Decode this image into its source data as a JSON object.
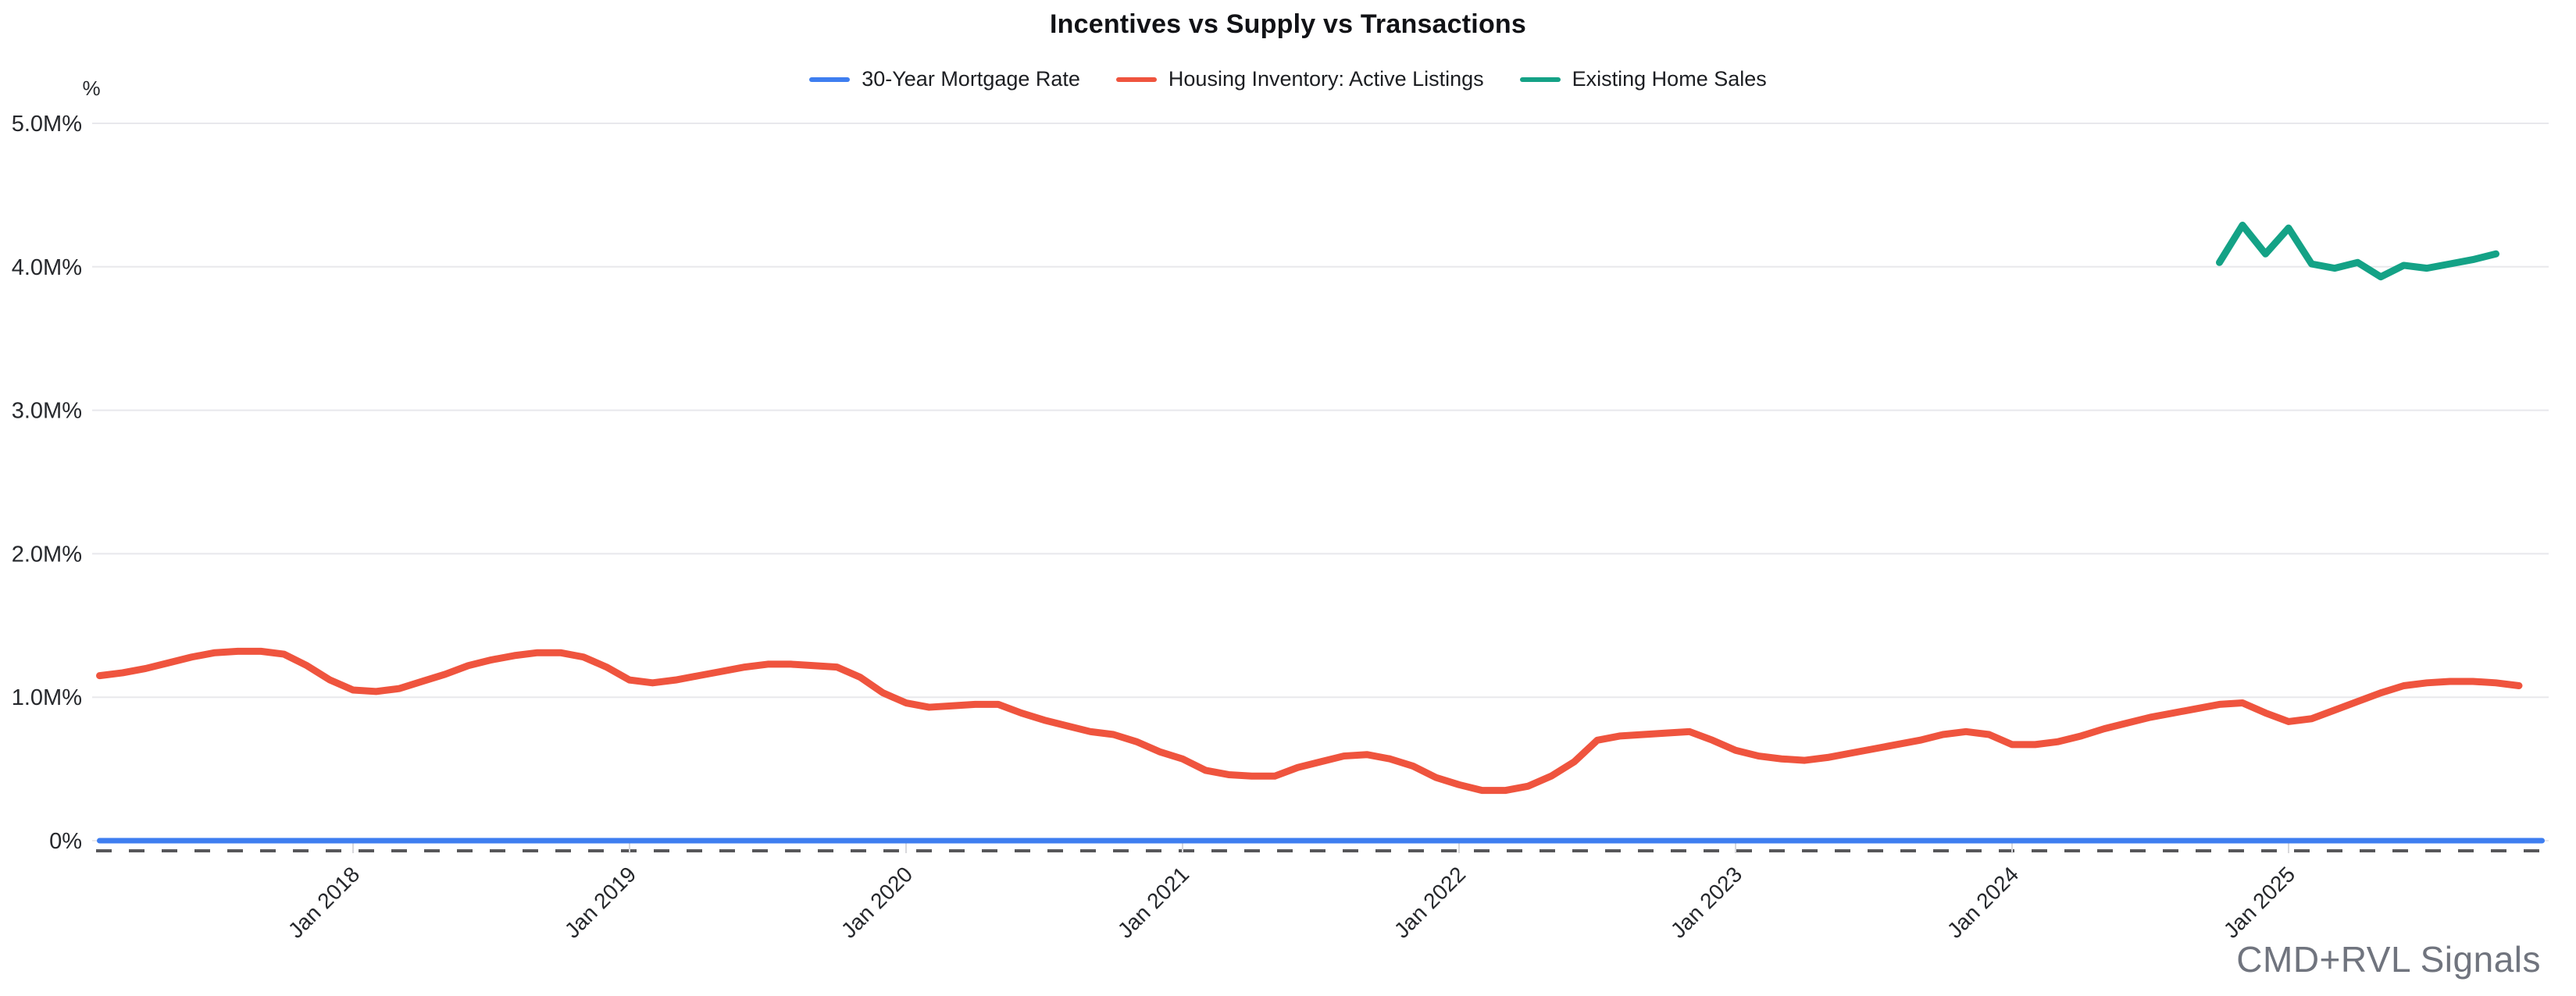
{
  "chart_data": {
    "type": "line",
    "title": "Incentives vs Supply vs Transactions",
    "legend_position": "top-center",
    "grid": "horizontal-only",
    "y_axis": {
      "unit_label": "%",
      "tick_values": [
        0,
        1,
        2,
        3,
        4,
        5
      ],
      "tick_labels": [
        "0%",
        "1.0M%",
        "2.0M%",
        "3.0M%",
        "4.0M%",
        "5.0M%"
      ],
      "range": [
        0,
        5.3
      ]
    },
    "x_axis": {
      "grid": false,
      "ticks": [
        {
          "label": "Jan 2018",
          "month_offset": 0
        },
        {
          "label": "Jan 2019",
          "month_offset": 12
        },
        {
          "label": "Jan 2020",
          "month_offset": 24
        },
        {
          "label": "Jan 2021",
          "month_offset": 36
        },
        {
          "label": "Jan 2022",
          "month_offset": 48
        },
        {
          "label": "Jan 2023",
          "month_offset": 60
        },
        {
          "label": "Jan 2024",
          "month_offset": 72
        },
        {
          "label": "Jan 2025",
          "month_offset": 84
        }
      ]
    },
    "series": [
      {
        "name": "30-Year Mortgage Rate",
        "color": "#3e7ef0",
        "line_width": 7,
        "start_label": "Feb 2017",
        "month_offset": -11,
        "month_step": 106,
        "unit": "percent",
        "note": "Rate values (~4-7%) are negligible on the millions-scale axis, so the line renders flat at 0.",
        "values": [
          0,
          0
        ]
      },
      {
        "name": "Housing Inventory: Active Listings",
        "color": "#ef543e",
        "line_width": 9,
        "start_label": "Feb 2017",
        "month_offset": -11,
        "month_step": 1,
        "unit": "millions of listings",
        "values": [
          1.15,
          1.17,
          1.2,
          1.24,
          1.28,
          1.31,
          1.32,
          1.32,
          1.3,
          1.22,
          1.12,
          1.05,
          1.04,
          1.06,
          1.11,
          1.16,
          1.22,
          1.26,
          1.29,
          1.31,
          1.31,
          1.28,
          1.21,
          1.12,
          1.1,
          1.12,
          1.15,
          1.18,
          1.21,
          1.23,
          1.23,
          1.22,
          1.21,
          1.14,
          1.03,
          0.96,
          0.93,
          0.94,
          0.95,
          0.95,
          0.89,
          0.84,
          0.8,
          0.76,
          0.74,
          0.69,
          0.62,
          0.57,
          0.49,
          0.46,
          0.45,
          0.45,
          0.51,
          0.55,
          0.59,
          0.6,
          0.57,
          0.52,
          0.44,
          0.39,
          0.35,
          0.35,
          0.38,
          0.45,
          0.55,
          0.7,
          0.73,
          0.74,
          0.75,
          0.76,
          0.7,
          0.63,
          0.59,
          0.57,
          0.56,
          0.58,
          0.61,
          0.64,
          0.67,
          0.7,
          0.74,
          0.76,
          0.74,
          0.67,
          0.67,
          0.69,
          0.73,
          0.78,
          0.82,
          0.86,
          0.89,
          0.92,
          0.95,
          0.96,
          0.89,
          0.83,
          0.85,
          0.91,
          0.97,
          1.03,
          1.08,
          1.1,
          1.11,
          1.11,
          1.1,
          1.08
        ]
      },
      {
        "name": "Existing Home Sales",
        "color": "#14a286",
        "line_width": 9,
        "start_label": "Oct 2024",
        "month_offset": 81,
        "month_step": 1,
        "unit": "millions (SAAR)",
        "values": [
          4.03,
          4.29,
          4.09,
          4.27,
          4.02,
          3.99,
          4.03,
          3.93,
          4.01,
          3.99,
          4.02,
          4.05,
          4.09
        ]
      }
    ]
  },
  "branding": {
    "watermark": "CMD+RVL Signals"
  }
}
